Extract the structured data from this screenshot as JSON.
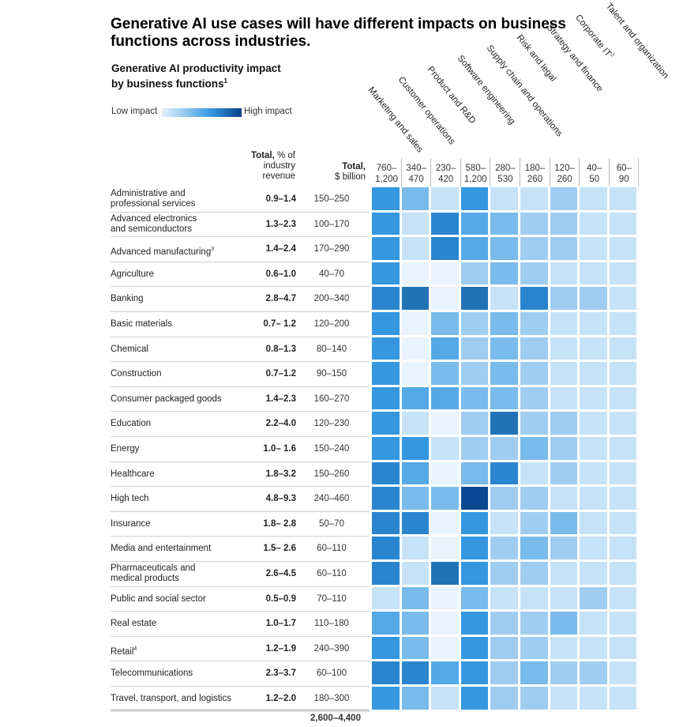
{
  "title": "Generative AI use cases will have different impacts on business functions across industries.",
  "subtitle": "Generative AI productivity impact by business functions",
  "subtitle_footnote": "1",
  "legend": {
    "low": "Low impact",
    "high": "High impact"
  },
  "headers": {
    "revenue_bold": "Total,",
    "revenue_rest": "% of industry revenue",
    "total_bold": "Total,",
    "total_rest": "$ billion"
  },
  "colors": {
    "scale": [
      "#e8f3fd",
      "#c6e2f7",
      "#9fcdf1",
      "#79bbea",
      "#54a8e6",
      "#3497e0",
      "#2a85cf",
      "#2173b5",
      "#0b4793"
    ]
  },
  "chart_data": {
    "type": "heatmap",
    "title": "Generative AI productivity impact by business functions",
    "value_scale": "0 = low impact, 8 = high impact",
    "functions": [
      {
        "name": "Marketing and sales",
        "range": [
          "760–",
          "1,200"
        ]
      },
      {
        "name": "Customer operations",
        "range": [
          "340–",
          "470"
        ]
      },
      {
        "name": "Product and R&D",
        "range": [
          "230–",
          "420"
        ]
      },
      {
        "name": "Software engineering",
        "range": [
          "580–",
          "1,200"
        ]
      },
      {
        "name": "Supply chain and operations",
        "range": [
          "280–",
          "530"
        ]
      },
      {
        "name": "Risk and legal",
        "range": [
          "180–",
          "260"
        ]
      },
      {
        "name": "Strategy and finance",
        "range": [
          "120–",
          "260"
        ]
      },
      {
        "name": "Corporate IT",
        "range": [
          "40–",
          "50"
        ],
        "footnote": "2"
      },
      {
        "name": "Talent and organization",
        "range": [
          "60–",
          "90"
        ]
      }
    ],
    "industries": [
      {
        "name": [
          "Administrative and",
          "professional services"
        ],
        "revenue": "0.9–1.4",
        "total": "150–250",
        "impact": [
          5,
          3,
          1,
          5,
          1,
          1,
          2,
          1,
          1
        ]
      },
      {
        "name": [
          "Advanced electronics",
          "and semiconductors"
        ],
        "revenue": "1.3–2.3",
        "total": "100–170",
        "impact": [
          5,
          1,
          6,
          4,
          3,
          2,
          2,
          1,
          1
        ]
      },
      {
        "name": [
          "Advanced manufacturing"
        ],
        "footnote": "3",
        "revenue": "1.4–2.4",
        "total": "170–290",
        "impact": [
          5,
          1,
          6,
          4,
          3,
          2,
          2,
          1,
          1
        ]
      },
      {
        "name": [
          "Agriculture"
        ],
        "revenue": "0.6–1.0",
        "total": "40–70",
        "impact": [
          5,
          0,
          0,
          2,
          3,
          2,
          1,
          1,
          1
        ]
      },
      {
        "name": [
          "Banking"
        ],
        "revenue": "2.8–4.7",
        "total": "200–340",
        "impact": [
          6,
          7,
          0,
          7,
          1,
          6,
          2,
          2,
          1
        ]
      },
      {
        "name": [
          "Basic materials"
        ],
        "revenue": "0.7– 1.2",
        "total": "120–200",
        "impact": [
          5,
          0,
          3,
          2,
          3,
          2,
          1,
          1,
          1
        ]
      },
      {
        "name": [
          "Chemical"
        ],
        "revenue": "0.8–1.3",
        "total": "80–140",
        "impact": [
          5,
          0,
          4,
          2,
          3,
          2,
          1,
          1,
          1
        ]
      },
      {
        "name": [
          "Construction"
        ],
        "revenue": "0.7–1.2",
        "total": "90–150",
        "impact": [
          5,
          0,
          3,
          2,
          3,
          2,
          1,
          1,
          1
        ]
      },
      {
        "name": [
          "Consumer packaged goods"
        ],
        "revenue": "1.4–2.3",
        "total": "160–270",
        "impact": [
          5,
          4,
          4,
          3,
          3,
          2,
          1,
          1,
          1
        ]
      },
      {
        "name": [
          "Education"
        ],
        "revenue": "2.2–4.0",
        "total": "120–230",
        "impact": [
          5,
          1,
          0,
          2,
          7,
          2,
          2,
          1,
          1
        ]
      },
      {
        "name": [
          "Energy"
        ],
        "revenue": "1.0– 1.6",
        "total": "150–240",
        "impact": [
          5,
          5,
          1,
          2,
          2,
          3,
          2,
          1,
          1
        ]
      },
      {
        "name": [
          "Healthcare"
        ],
        "revenue": "1.8–3.2",
        "total": "150–260",
        "impact": [
          6,
          4,
          0,
          3,
          6,
          1,
          2,
          1,
          1
        ]
      },
      {
        "name": [
          "High tech"
        ],
        "revenue": "4.8–9.3",
        "total": "240–460",
        "impact": [
          6,
          3,
          3,
          8,
          2,
          2,
          1,
          1,
          1
        ]
      },
      {
        "name": [
          "Insurance"
        ],
        "revenue": "1.8– 2.8",
        "total": "50–70",
        "impact": [
          6,
          6,
          0,
          5,
          1,
          2,
          3,
          1,
          1
        ]
      },
      {
        "name": [
          "Media and entertainment"
        ],
        "revenue": "1.5– 2.6",
        "total": "60–110",
        "impact": [
          6,
          1,
          0,
          5,
          2,
          3,
          2,
          1,
          1
        ]
      },
      {
        "name": [
          "Pharmaceuticals and",
          "medical products"
        ],
        "revenue": "2.6–4.5",
        "total": "60–110",
        "impact": [
          6,
          1,
          7,
          5,
          2,
          2,
          1,
          1,
          1
        ]
      },
      {
        "name": [
          "Public and social sector"
        ],
        "revenue": "0.5–0.9",
        "total": "70–110",
        "impact": [
          1,
          3,
          0,
          3,
          1,
          1,
          1,
          2,
          1
        ]
      },
      {
        "name": [
          "Real estate"
        ],
        "revenue": "1.0–1.7",
        "total": "110–180",
        "impact": [
          4,
          3,
          0,
          5,
          2,
          2,
          3,
          1,
          1
        ]
      },
      {
        "name": [
          "Retail"
        ],
        "footnote": "4",
        "revenue": "1.2–1.9",
        "total": "240–390",
        "impact": [
          5,
          3,
          0,
          5,
          2,
          2,
          1,
          1,
          1
        ]
      },
      {
        "name": [
          "Telecommunications"
        ],
        "revenue": "2.3–3.7",
        "total": "60–100",
        "impact": [
          6,
          6,
          4,
          5,
          2,
          3,
          2,
          2,
          1
        ]
      },
      {
        "name": [
          "Travel, transport, and logistics"
        ],
        "revenue": "1.2–2.0",
        "total": "180–300",
        "impact": [
          5,
          3,
          1,
          5,
          2,
          2,
          1,
          1,
          1
        ]
      }
    ],
    "grand_total": "2,600–4,400"
  }
}
